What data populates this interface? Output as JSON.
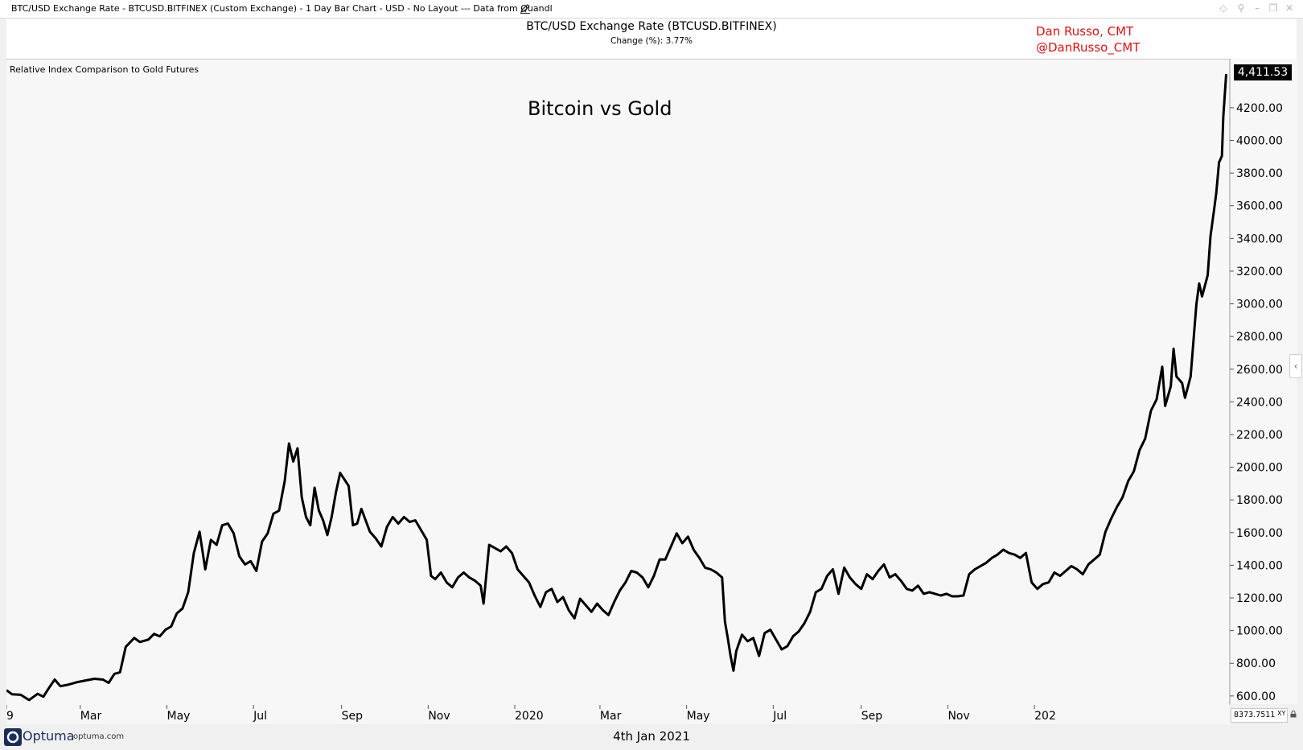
{
  "window": {
    "title": "BTC/USD Exchange Rate - BTCUSD.BITFINEX (Custom Exchange) - 1 Day Bar Chart - USD - No Layout --- Data from Quandl",
    "icons": [
      "pencil-icon",
      "diamond-icon",
      "pin-icon",
      "minimize-icon",
      "restore-icon",
      "close-icon"
    ]
  },
  "header": {
    "title": "BTC/USD Exchange Rate (BTCUSD.BITFINEX)",
    "change": "Change (%): 3.77%",
    "author_name": "Dan Russo, CMT",
    "author_handle": "@DanRusso_CMT",
    "author_color": "#e01010"
  },
  "panel": {
    "indicator_label": "Relative Index Comparison to Gold Futures",
    "chart_title": "Bitcoin vs Gold",
    "last_value": "4,411.53",
    "xy_readout": "8373.7511",
    "xy_tag": "XY"
  },
  "footer": {
    "brand": "Optuma",
    "domain": "optuma.com",
    "date": "4th Jan 2021"
  },
  "chart_data": {
    "type": "line",
    "title": "Bitcoin vs Gold",
    "series": [
      {
        "values": [
          [
            0,
            640
          ],
          [
            4,
            615
          ],
          [
            10,
            612
          ],
          [
            16,
            580
          ],
          [
            22,
            618
          ],
          [
            26,
            600
          ],
          [
            30,
            655
          ],
          [
            34,
            705
          ],
          [
            38,
            665
          ],
          [
            44,
            675
          ],
          [
            50,
            690
          ],
          [
            56,
            700
          ],
          [
            62,
            710
          ],
          [
            68,
            705
          ],
          [
            72,
            685
          ],
          [
            76,
            740
          ],
          [
            80,
            750
          ],
          [
            84,
            905
          ],
          [
            90,
            960
          ],
          [
            94,
            935
          ],
          [
            100,
            950
          ],
          [
            104,
            985
          ],
          [
            108,
            970
          ],
          [
            112,
            1010
          ],
          [
            116,
            1030
          ],
          [
            120,
            1110
          ],
          [
            124,
            1140
          ],
          [
            128,
            1240
          ],
          [
            132,
            1480
          ],
          [
            136,
            1610
          ],
          [
            140,
            1380
          ],
          [
            144,
            1560
          ],
          [
            148,
            1530
          ],
          [
            152,
            1650
          ],
          [
            156,
            1660
          ],
          [
            160,
            1600
          ],
          [
            164,
            1460
          ],
          [
            168,
            1410
          ],
          [
            172,
            1430
          ],
          [
            176,
            1370
          ],
          [
            180,
            1550
          ],
          [
            184,
            1600
          ],
          [
            188,
            1720
          ],
          [
            192,
            1740
          ],
          [
            196,
            1920
          ],
          [
            199,
            2150
          ],
          [
            202,
            2040
          ],
          [
            205,
            2120
          ],
          [
            208,
            1820
          ],
          [
            211,
            1700
          ],
          [
            214,
            1650
          ],
          [
            217,
            1880
          ],
          [
            220,
            1740
          ],
          [
            223,
            1680
          ],
          [
            226,
            1590
          ],
          [
            229,
            1700
          ],
          [
            232,
            1850
          ],
          [
            235,
            1970
          ],
          [
            238,
            1930
          ],
          [
            241,
            1890
          ],
          [
            244,
            1650
          ],
          [
            247,
            1660
          ],
          [
            250,
            1750
          ],
          [
            253,
            1680
          ],
          [
            256,
            1610
          ],
          [
            260,
            1570
          ],
          [
            264,
            1520
          ],
          [
            268,
            1640
          ],
          [
            272,
            1700
          ],
          [
            276,
            1660
          ],
          [
            280,
            1700
          ],
          [
            284,
            1670
          ],
          [
            288,
            1680
          ],
          [
            292,
            1620
          ],
          [
            296,
            1560
          ],
          [
            299,
            1340
          ],
          [
            302,
            1320
          ],
          [
            306,
            1360
          ],
          [
            310,
            1300
          ],
          [
            314,
            1270
          ],
          [
            318,
            1330
          ],
          [
            322,
            1360
          ],
          [
            326,
            1330
          ],
          [
            330,
            1310
          ],
          [
            334,
            1280
          ],
          [
            336,
            1170
          ],
          [
            340,
            1530
          ],
          [
            344,
            1510
          ],
          [
            348,
            1490
          ],
          [
            352,
            1520
          ],
          [
            356,
            1480
          ],
          [
            360,
            1380
          ],
          [
            364,
            1340
          ],
          [
            368,
            1300
          ],
          [
            372,
            1220
          ],
          [
            376,
            1150
          ],
          [
            380,
            1240
          ],
          [
            384,
            1260
          ],
          [
            388,
            1180
          ],
          [
            392,
            1210
          ],
          [
            396,
            1130
          ],
          [
            400,
            1080
          ],
          [
            404,
            1200
          ],
          [
            408,
            1160
          ],
          [
            412,
            1120
          ],
          [
            416,
            1170
          ],
          [
            420,
            1130
          ],
          [
            424,
            1100
          ],
          [
            428,
            1180
          ],
          [
            432,
            1250
          ],
          [
            436,
            1300
          ],
          [
            440,
            1370
          ],
          [
            444,
            1360
          ],
          [
            448,
            1330
          ],
          [
            452,
            1270
          ],
          [
            456,
            1340
          ],
          [
            460,
            1440
          ],
          [
            464,
            1440
          ],
          [
            468,
            1520
          ],
          [
            472,
            1600
          ],
          [
            476,
            1540
          ],
          [
            480,
            1580
          ],
          [
            484,
            1500
          ],
          [
            488,
            1450
          ],
          [
            492,
            1390
          ],
          [
            496,
            1380
          ],
          [
            500,
            1360
          ],
          [
            504,
            1330
          ],
          [
            506,
            1060
          ],
          [
            508,
            960
          ],
          [
            510,
            850
          ],
          [
            512,
            760
          ],
          [
            514,
            880
          ],
          [
            518,
            980
          ],
          [
            522,
            940
          ],
          [
            526,
            960
          ],
          [
            530,
            850
          ],
          [
            534,
            990
          ],
          [
            538,
            1010
          ],
          [
            542,
            950
          ],
          [
            546,
            890
          ],
          [
            550,
            910
          ],
          [
            554,
            970
          ],
          [
            558,
            1000
          ],
          [
            562,
            1050
          ],
          [
            566,
            1120
          ],
          [
            570,
            1240
          ],
          [
            574,
            1260
          ],
          [
            578,
            1340
          ],
          [
            582,
            1380
          ],
          [
            586,
            1230
          ],
          [
            590,
            1390
          ],
          [
            594,
            1330
          ],
          [
            598,
            1290
          ],
          [
            602,
            1260
          ],
          [
            606,
            1350
          ],
          [
            610,
            1320
          ],
          [
            614,
            1370
          ],
          [
            618,
            1410
          ],
          [
            622,
            1330
          ],
          [
            626,
            1350
          ],
          [
            630,
            1310
          ],
          [
            634,
            1260
          ],
          [
            638,
            1250
          ],
          [
            642,
            1280
          ],
          [
            646,
            1230
          ],
          [
            650,
            1240
          ],
          [
            654,
            1230
          ],
          [
            658,
            1220
          ],
          [
            662,
            1230
          ],
          [
            666,
            1215
          ],
          [
            670,
            1215
          ],
          [
            674,
            1220
          ],
          [
            678,
            1350
          ],
          [
            682,
            1380
          ],
          [
            686,
            1400
          ],
          [
            690,
            1420
          ],
          [
            694,
            1450
          ],
          [
            698,
            1470
          ],
          [
            702,
            1500
          ],
          [
            706,
            1480
          ],
          [
            710,
            1470
          ],
          [
            714,
            1450
          ],
          [
            718,
            1480
          ],
          [
            722,
            1300
          ],
          [
            726,
            1260
          ],
          [
            730,
            1290
          ],
          [
            734,
            1300
          ],
          [
            738,
            1360
          ],
          [
            742,
            1340
          ],
          [
            746,
            1370
          ],
          [
            750,
            1400
          ],
          [
            754,
            1380
          ],
          [
            758,
            1350
          ],
          [
            762,
            1410
          ],
          [
            766,
            1440
          ],
          [
            770,
            1470
          ],
          [
            774,
            1610
          ],
          [
            778,
            1690
          ],
          [
            782,
            1760
          ],
          [
            786,
            1820
          ],
          [
            790,
            1920
          ],
          [
            794,
            1980
          ],
          [
            798,
            2110
          ],
          [
            802,
            2180
          ],
          [
            806,
            2350
          ],
          [
            810,
            2420
          ],
          [
            814,
            2620
          ],
          [
            816,
            2380
          ],
          [
            820,
            2500
          ],
          [
            822,
            2730
          ],
          [
            824,
            2560
          ],
          [
            828,
            2520
          ],
          [
            830,
            2430
          ],
          [
            834,
            2560
          ],
          [
            838,
            3000
          ],
          [
            840,
            3130
          ],
          [
            842,
            3050
          ],
          [
            846,
            3180
          ],
          [
            848,
            3420
          ],
          [
            850,
            3550
          ],
          [
            852,
            3680
          ],
          [
            854,
            3870
          ],
          [
            856,
            3910
          ],
          [
            857,
            4150
          ],
          [
            859,
            4411.53
          ]
        ]
      }
    ],
    "ylim": [
      550,
      4500
    ],
    "ytick_labels": [
      "600.00",
      "800.00",
      "1000.00",
      "1200.00",
      "1400.00",
      "1600.00",
      "1800.00",
      "2000.00",
      "2200.00",
      "2400.00",
      "2600.00",
      "2800.00",
      "3000.00",
      "3200.00",
      "3400.00",
      "3600.00",
      "3800.00",
      "4000.00",
      "4200.00"
    ],
    "ytick_values": [
      600,
      800,
      1000,
      1200,
      1400,
      1600,
      1800,
      2000,
      2200,
      2400,
      2600,
      2800,
      3000,
      3200,
      3400,
      3600,
      3800,
      4000,
      4200
    ],
    "xtick_labels": [
      "9",
      "Mar",
      "May",
      "Jul",
      "Sep",
      "Nov",
      "2020",
      "Mar",
      "May",
      "Jul",
      "Sep",
      "Nov",
      "202"
    ],
    "xtick_days": [
      0,
      52,
      113,
      174,
      236,
      297,
      358,
      418,
      479,
      540,
      602,
      663,
      724
    ],
    "xlim": [
      0,
      861
    ],
    "line_color": "#000000",
    "grid": false
  }
}
